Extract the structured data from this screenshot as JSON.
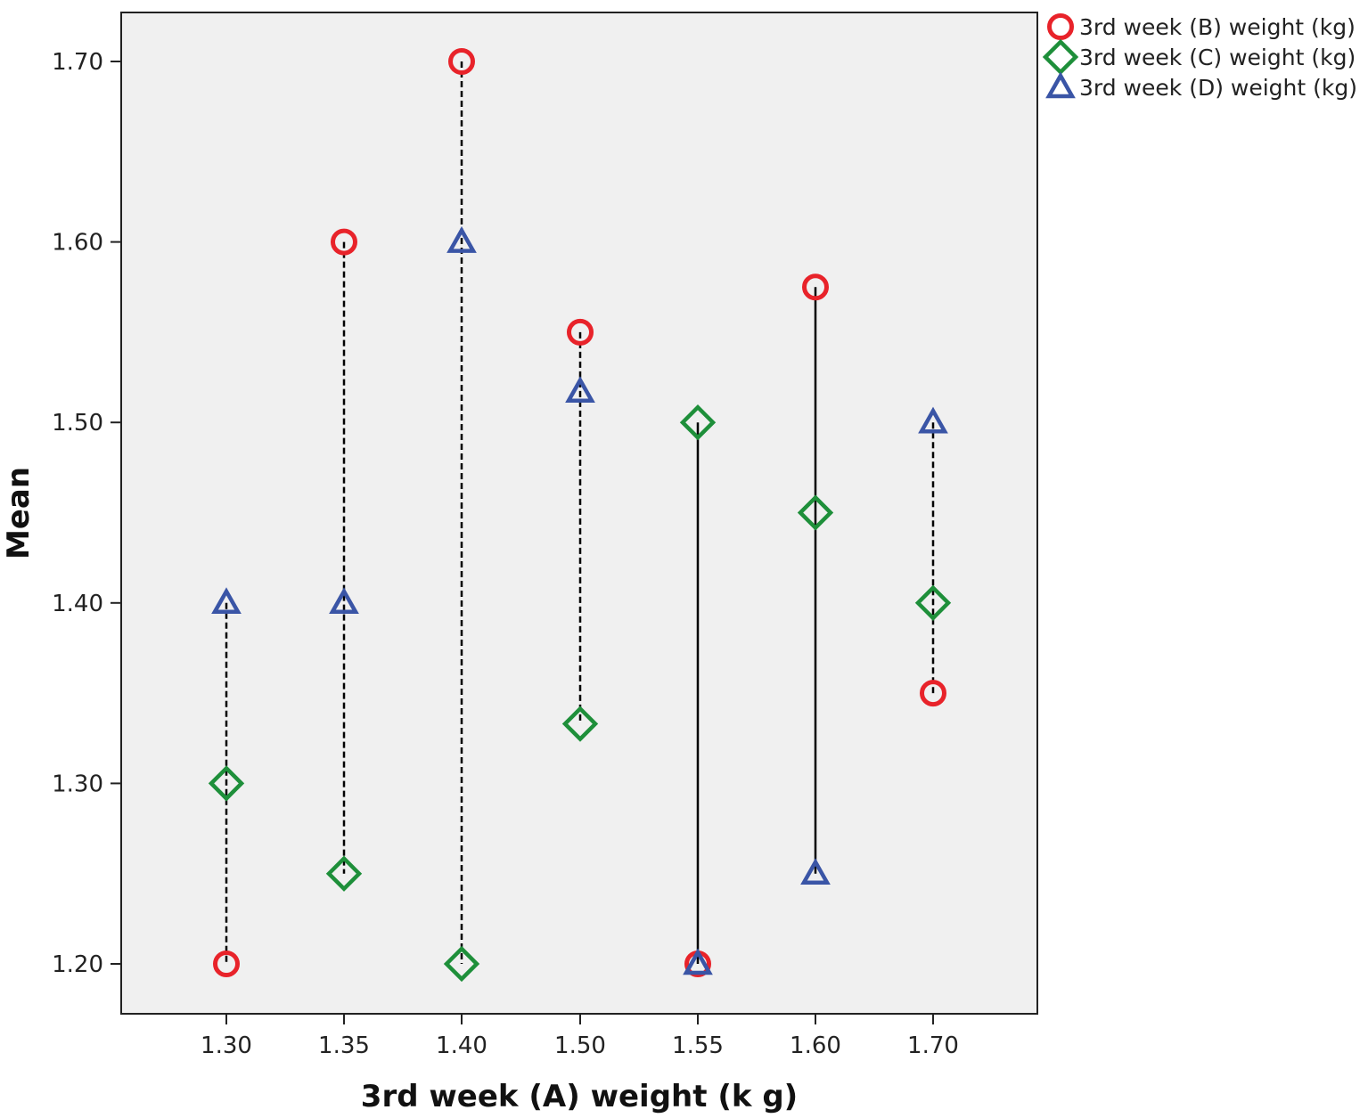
{
  "chart_data": {
    "type": "scatter",
    "xlabel": "3rd week (A) weight (k g)",
    "ylabel": "Mean",
    "categories": [
      "1.30",
      "1.35",
      "1.40",
      "1.50",
      "1.55",
      "1.60",
      "1.70"
    ],
    "ylim": [
      1.18,
      1.73
    ],
    "yticks": [
      "1.20",
      "1.30",
      "1.40",
      "1.50",
      "1.60",
      "1.70"
    ],
    "grid": false,
    "plot_background": "#f0f0f0",
    "legend_position": "top-right outside",
    "series": [
      {
        "name": "3rd week (B) weight (kg)",
        "marker": "circle",
        "color": "#e8232a",
        "values": [
          1.2,
          1.6,
          1.7,
          1.55,
          1.2,
          1.575,
          1.35
        ]
      },
      {
        "name": "3rd week (C) weight (kg)",
        "marker": "diamond",
        "color": "#1e8f3a",
        "values": [
          1.3,
          1.25,
          1.2,
          1.333,
          1.5,
          1.45,
          1.4
        ]
      },
      {
        "name": "3rd week (D) weight (kg)",
        "marker": "triangle",
        "color": "#3a55a6",
        "values": [
          1.4,
          1.4,
          1.6,
          1.517,
          1.2,
          1.25,
          1.5
        ]
      }
    ],
    "drop_lines": {
      "color": "#000000",
      "style_per_category": [
        "dashed",
        "dashed",
        "dashed",
        "dashed",
        "solid",
        "solid",
        "dashed"
      ]
    }
  }
}
